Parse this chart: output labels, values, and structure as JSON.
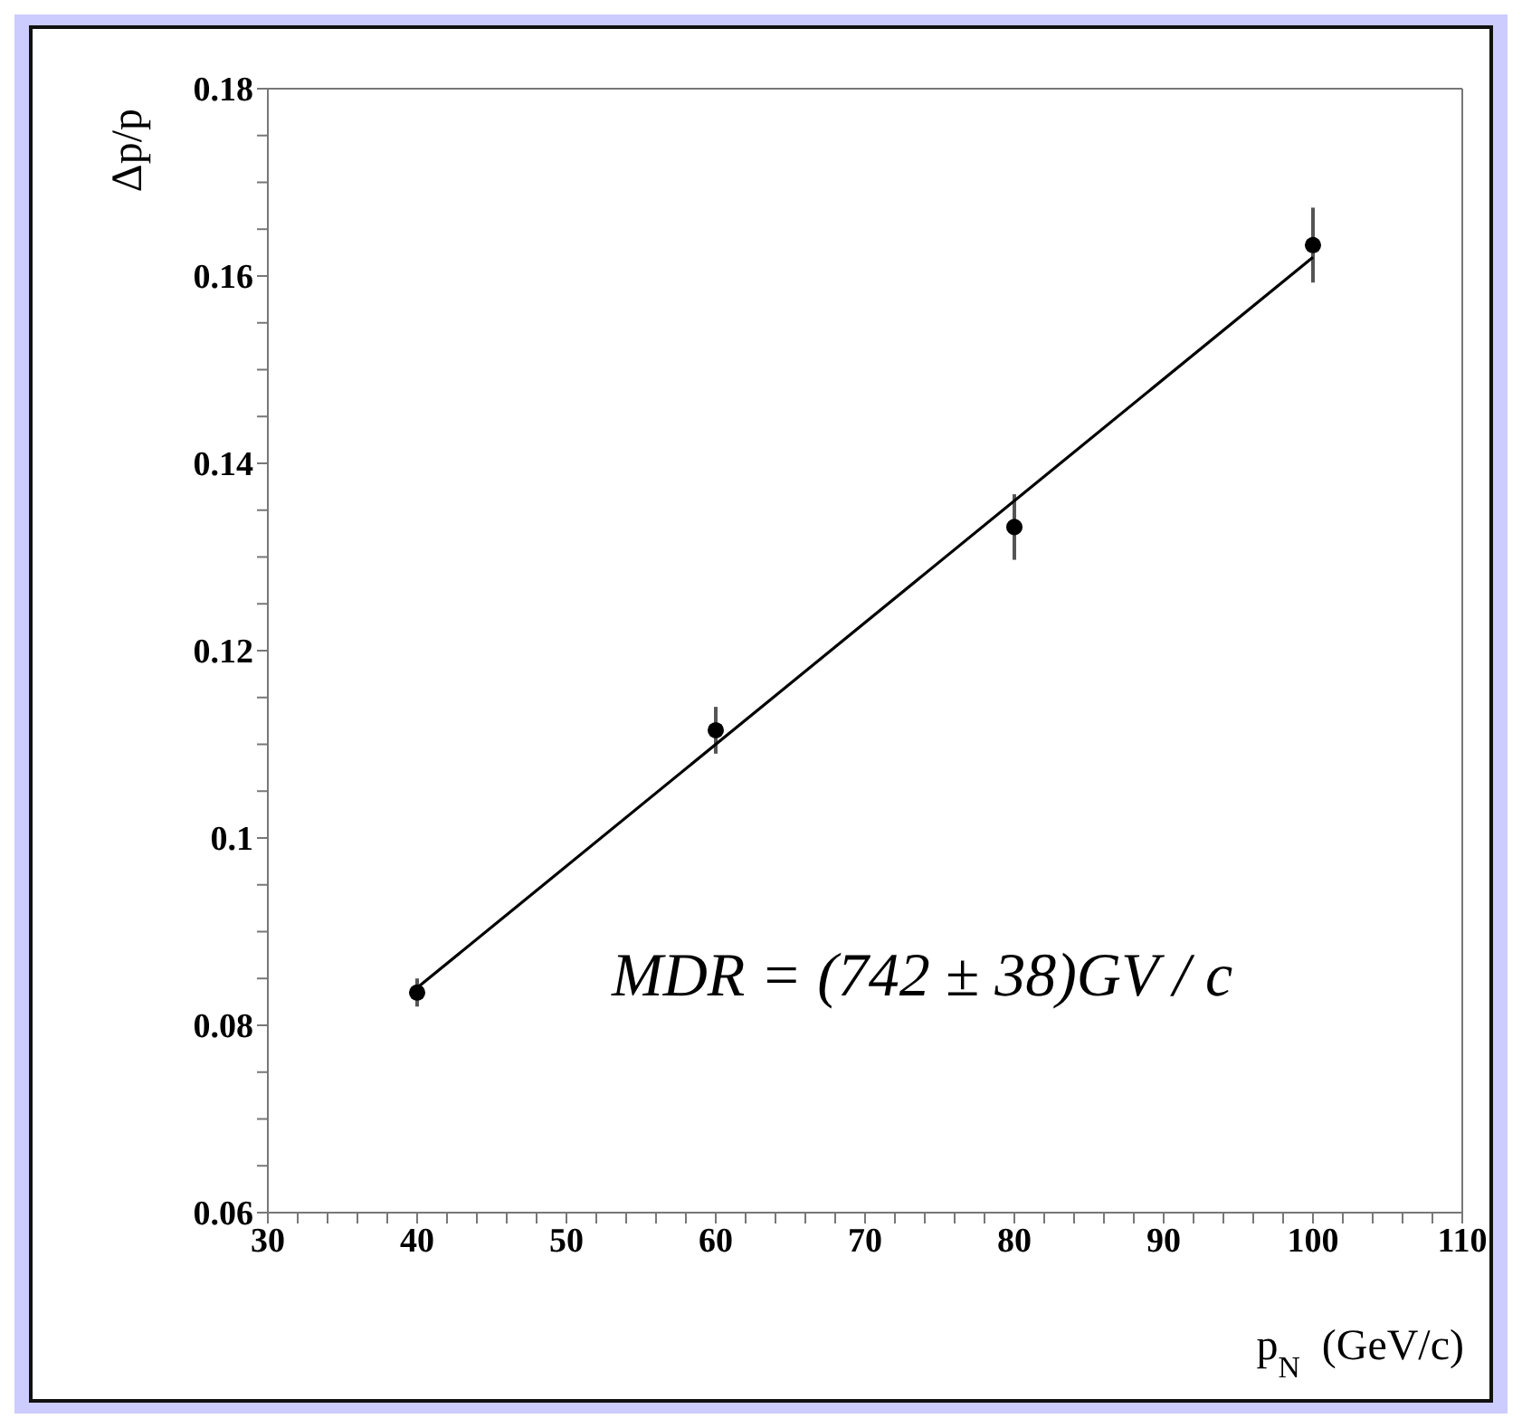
{
  "chart_data": {
    "type": "scatter",
    "xlabel": "p$_{N}$  (GeV/c)",
    "ylabel": "Δp/p",
    "annotations": [
      "MDR = (742 ± 38)GV / c"
    ],
    "x": [
      40,
      60,
      80,
      100
    ],
    "series": [
      {
        "color": "#000000",
        "marker": "circle",
        "values": [
          0.0835,
          0.1115,
          0.1332,
          0.1633
        ],
        "errors": [
          0.0015,
          0.0025,
          0.0035,
          0.004
        ]
      },
      {
        "type": "line",
        "color": "#000000",
        "marker": "none",
        "x": [
          40,
          100
        ],
        "values": [
          0.084,
          0.162
        ]
      }
    ],
    "grid": false,
    "legend": false,
    "xlim": [
      30,
      110
    ],
    "xticks": [
      30,
      {
        "value": 32,
        "label": null
      },
      {
        "value": 34,
        "label": null
      },
      {
        "value": 36,
        "label": null
      },
      {
        "value": 38,
        "label": null
      },
      40,
      {
        "value": 42,
        "label": null
      },
      {
        "value": 44,
        "label": null
      },
      {
        "value": 46,
        "label": null
      },
      {
        "value": 48,
        "label": null
      },
      50,
      {
        "value": 52,
        "label": null
      },
      {
        "value": 54,
        "label": null
      },
      {
        "value": 56,
        "label": null
      },
      {
        "value": 58,
        "label": null
      },
      60,
      {
        "value": 62,
        "label": null
      },
      {
        "value": 64,
        "label": null
      },
      {
        "value": 66,
        "label": null
      },
      {
        "value": 68,
        "label": null
      },
      70,
      {
        "value": 72,
        "label": null
      },
      {
        "value": 74,
        "label": null
      },
      {
        "value": 76,
        "label": null
      },
      {
        "value": 78,
        "label": null
      },
      80,
      {
        "value": 82,
        "label": null
      },
      {
        "value": 84,
        "label": null
      },
      {
        "value": 86,
        "label": null
      },
      {
        "value": 88,
        "label": null
      },
      90,
      {
        "value": 92,
        "label": null
      },
      {
        "value": 94,
        "label": null
      },
      {
        "value": 96,
        "label": null
      },
      {
        "value": 98,
        "label": null
      },
      100,
      {
        "value": 102,
        "label": null
      },
      {
        "value": 104,
        "label": null
      },
      {
        "value": 106,
        "label": null
      },
      {
        "value": 108,
        "label": null
      },
      110
    ],
    "ylim": [
      0.06,
      0.18
    ],
    "yticks": [
      0.06,
      {
        "value": 0.065,
        "label": null
      },
      {
        "value": 0.07,
        "label": null
      },
      {
        "value": 0.075,
        "label": null
      },
      0.08,
      {
        "value": 0.085,
        "label": null
      },
      {
        "value": 0.09,
        "label": null
      },
      {
        "value": 0.095,
        "label": null
      },
      0.1,
      {
        "value": 0.105,
        "label": null
      },
      {
        "value": 0.11,
        "label": null
      },
      {
        "value": 0.115,
        "label": null
      },
      0.12,
      {
        "value": 0.125,
        "label": null
      },
      {
        "value": 0.13,
        "label": null
      },
      {
        "value": 0.135,
        "label": null
      },
      0.14,
      {
        "value": 0.145,
        "label": null
      },
      {
        "value": 0.15,
        "label": null
      },
      {
        "value": 0.155,
        "label": null
      },
      0.16,
      {
        "value": 0.165,
        "label": null
      },
      {
        "value": 0.17,
        "label": null
      },
      {
        "value": 0.175,
        "label": null
      },
      0.18
    ]
  }
}
